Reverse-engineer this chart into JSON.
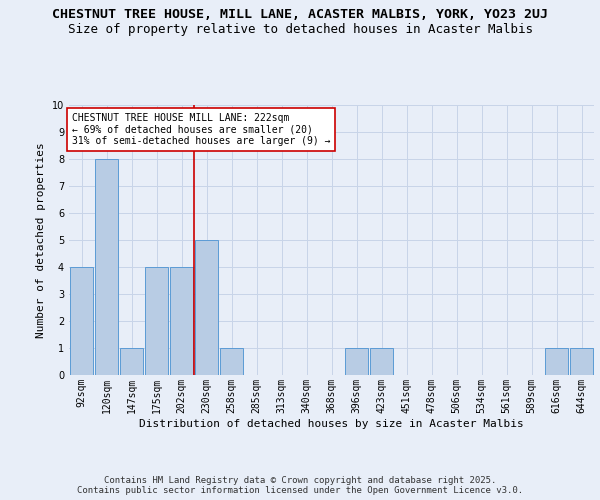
{
  "title": "CHESTNUT TREE HOUSE, MILL LANE, ACASTER MALBIS, YORK, YO23 2UJ",
  "subtitle": "Size of property relative to detached houses in Acaster Malbis",
  "xlabel": "Distribution of detached houses by size in Acaster Malbis",
  "ylabel": "Number of detached properties",
  "footer_line1": "Contains HM Land Registry data © Crown copyright and database right 2025.",
  "footer_line2": "Contains public sector information licensed under the Open Government Licence v3.0.",
  "annotation_line1": "CHESTNUT TREE HOUSE MILL LANE: 222sqm",
  "annotation_line2": "← 69% of detached houses are smaller (20)",
  "annotation_line3": "31% of semi-detached houses are larger (9) →",
  "bins": [
    "92sqm",
    "120sqm",
    "147sqm",
    "175sqm",
    "202sqm",
    "230sqm",
    "258sqm",
    "285sqm",
    "313sqm",
    "340sqm",
    "368sqm",
    "396sqm",
    "423sqm",
    "451sqm",
    "478sqm",
    "506sqm",
    "534sqm",
    "561sqm",
    "589sqm",
    "616sqm",
    "644sqm"
  ],
  "values": [
    4,
    8,
    1,
    4,
    4,
    5,
    1,
    0,
    0,
    0,
    0,
    1,
    1,
    0,
    0,
    0,
    0,
    0,
    0,
    1,
    1
  ],
  "bar_color": "#b8cce4",
  "bar_edge_color": "#5b9bd5",
  "red_line_index": 5,
  "annotation_box_color": "#ffffff",
  "annotation_box_edge_color": "#cc0000",
  "ylim": [
    0,
    10
  ],
  "yticks": [
    0,
    1,
    2,
    3,
    4,
    5,
    6,
    7,
    8,
    9,
    10
  ],
  "grid_color": "#c8d4e8",
  "background_color": "#e8eef8",
  "title_fontsize": 9.5,
  "subtitle_fontsize": 9,
  "axis_label_fontsize": 8,
  "tick_fontsize": 7,
  "footer_fontsize": 6.5,
  "annotation_fontsize": 7
}
